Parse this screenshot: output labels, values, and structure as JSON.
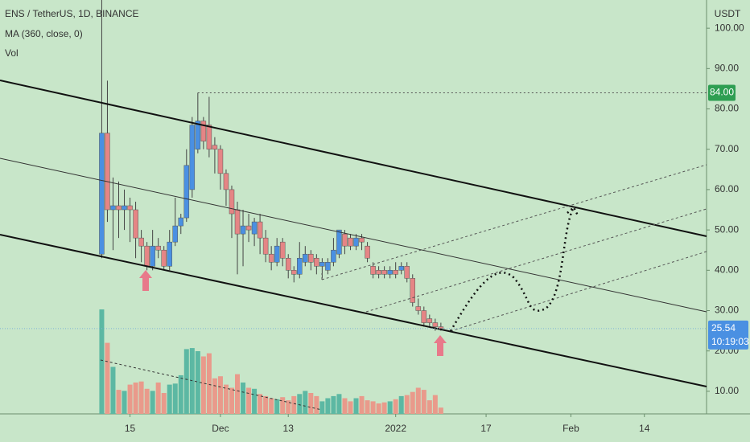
{
  "chart_data": {
    "type": "candlestick",
    "title": "ENS / TetherUS, 1D, BINANCE",
    "indicator_label": "MA (360, close, 0)",
    "volume_label": "Vol",
    "currency": "USDT",
    "x": [
      "2021-11-10",
      "2021-11-11",
      "2021-11-12",
      "2021-11-13",
      "2021-11-14",
      "2021-11-15",
      "2021-11-16",
      "2021-11-17",
      "2021-11-18",
      "2021-11-19",
      "2021-11-20",
      "2021-11-21",
      "2021-11-22",
      "2021-11-23",
      "2021-11-24",
      "2021-11-25",
      "2021-11-26",
      "2021-11-27",
      "2021-11-28",
      "2021-11-29",
      "2021-11-30",
      "2021-12-01",
      "2021-12-02",
      "2021-12-03",
      "2021-12-04",
      "2021-12-05",
      "2021-12-06",
      "2021-12-07",
      "2021-12-08",
      "2021-12-09",
      "2021-12-10",
      "2021-12-11",
      "2021-12-12",
      "2021-12-13",
      "2021-12-14",
      "2021-12-15",
      "2021-12-16",
      "2021-12-17",
      "2021-12-18",
      "2021-12-19",
      "2021-12-20",
      "2021-12-21",
      "2021-12-22",
      "2021-12-23",
      "2021-12-24",
      "2021-12-25",
      "2021-12-26",
      "2021-12-27",
      "2021-12-28",
      "2021-12-29",
      "2021-12-30",
      "2021-12-31",
      "2022-01-01",
      "2022-01-02",
      "2022-01-03",
      "2022-01-04",
      "2022-01-05",
      "2022-01-06",
      "2022-01-07",
      "2022-01-08",
      "2022-01-09"
    ],
    "open": [
      44,
      74,
      55,
      56,
      55,
      56,
      55,
      48,
      46,
      41,
      46,
      45,
      41,
      47,
      51,
      53,
      60,
      70,
      77,
      76,
      71,
      70,
      64,
      60,
      55,
      49,
      51,
      49,
      52,
      48,
      44,
      42,
      47,
      43,
      40,
      39,
      42,
      44,
      43,
      41,
      40,
      42,
      44,
      49,
      48,
      46,
      48,
      46,
      41,
      40,
      40,
      39,
      40,
      40,
      41,
      38,
      31,
      30,
      28,
      27,
      26
    ],
    "high": [
      107,
      87,
      63,
      62,
      60,
      58,
      57,
      50,
      47,
      50,
      48,
      46,
      50,
      58,
      54,
      70,
      78,
      84,
      78,
      83,
      73,
      71,
      65,
      61,
      57,
      55,
      54,
      53,
      54,
      50,
      46,
      48,
      48,
      44,
      41,
      47,
      46,
      45,
      44,
      43,
      43,
      48,
      50,
      50,
      49,
      49,
      49,
      47,
      42,
      41,
      41,
      41,
      42,
      42,
      42,
      39,
      33,
      31,
      29,
      28,
      27
    ],
    "low": [
      43,
      52,
      45,
      48,
      50,
      47,
      43,
      42,
      40,
      40,
      43,
      40,
      40,
      46,
      49,
      52,
      58,
      69,
      70,
      68,
      64,
      60,
      56,
      48,
      39,
      41,
      47,
      46,
      44,
      42,
      40,
      41,
      41,
      38,
      37,
      38,
      41,
      40,
      39,
      38,
      39,
      41,
      43,
      44,
      45,
      45,
      45,
      42,
      38,
      38,
      38,
      38,
      38,
      39,
      37,
      31,
      29,
      26,
      26,
      25,
      25
    ],
    "close": [
      74,
      55,
      56,
      55,
      56,
      55,
      48,
      46,
      41,
      46,
      45,
      41,
      47,
      51,
      53,
      66,
      76,
      77,
      72,
      70,
      70,
      64,
      60,
      54,
      49,
      51,
      50,
      52,
      48,
      44,
      42,
      46,
      43,
      40,
      39,
      43,
      44,
      42,
      41,
      42,
      42,
      45,
      50,
      46,
      46,
      48,
      47,
      43,
      39,
      39,
      39,
      40,
      39,
      41,
      38,
      32,
      30,
      27,
      27,
      26,
      25.54
    ],
    "volume": [
      100,
      68,
      45,
      23,
      22,
      28,
      30,
      31,
      24,
      22,
      30,
      20,
      28,
      29,
      37,
      62,
      63,
      60,
      55,
      58,
      34,
      36,
      28,
      25,
      38,
      30,
      25,
      24,
      19,
      17,
      15,
      14,
      16,
      13,
      17,
      19,
      22,
      20,
      17,
      12,
      15,
      17,
      19,
      15,
      12,
      15,
      17,
      13,
      12,
      10,
      11,
      12,
      14,
      17,
      18,
      21,
      25,
      23,
      13,
      18,
      6
    ],
    "up_color": "#4a90e2",
    "down_color": "#e58585",
    "volume_up_color": "#5cb8a3",
    "volume_down_color": "#e99a8b",
    "xlim": [
      "2021-10-23",
      "2022-02-25"
    ],
    "xticks": [
      {
        "value": "2021-11-15",
        "label": "15"
      },
      {
        "value": "2021-12-01",
        "label": "Dec"
      },
      {
        "value": "2021-12-13",
        "label": "13"
      },
      {
        "value": "2022-01-01",
        "label": "2022"
      },
      {
        "value": "2022-01-17",
        "label": "17"
      },
      {
        "value": "2022-02-01",
        "label": "Feb"
      },
      {
        "value": "2022-02-14",
        "label": "14"
      }
    ],
    "ylim": [
      4.4,
      107
    ],
    "yticks": [
      {
        "value": 10,
        "label": "10.00"
      },
      {
        "value": 20,
        "label": "20.00"
      },
      {
        "value": 30,
        "label": "30.00"
      },
      {
        "value": 40,
        "label": "40.00"
      },
      {
        "value": 50,
        "label": "50.00"
      },
      {
        "value": 60,
        "label": "60.00"
      },
      {
        "value": 70,
        "label": "70.00"
      },
      {
        "value": 80,
        "label": "80.00"
      },
      {
        "value": 90,
        "label": "90.00"
      },
      {
        "value": 100,
        "label": "100.00"
      }
    ],
    "vlim": [
      0,
      100
    ],
    "marked_level": {
      "value": 84,
      "label": "84.00"
    },
    "last_price": {
      "value": 25.54,
      "label": "25.54",
      "countdown": "10:19:03"
    }
  }
}
